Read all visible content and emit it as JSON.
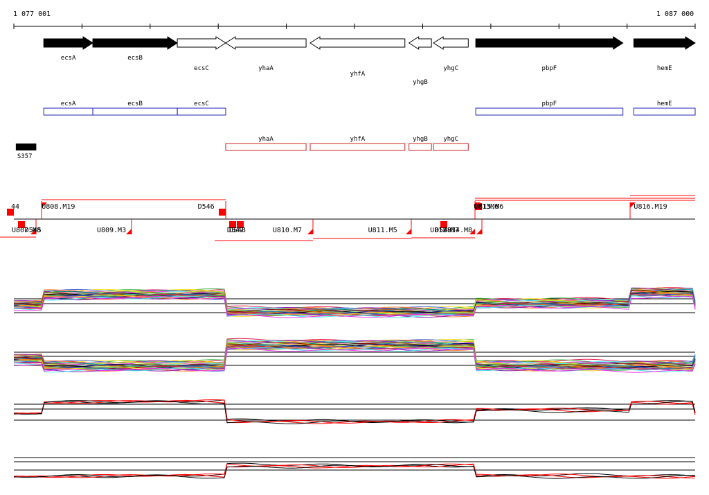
{
  "ruler": {
    "start_label": "1 077 001",
    "end_label": "1 087 000",
    "start": 1077001,
    "end": 1087000
  },
  "genes": [
    {
      "name": "ecsA",
      "start": 1077440,
      "end": 1078160,
      "strand": "+",
      "filled": true,
      "label_row": 0
    },
    {
      "name": "ecsB",
      "start": 1078160,
      "end": 1079400,
      "strand": "+",
      "filled": true,
      "label_row": 0
    },
    {
      "name": "ecsC",
      "start": 1079400,
      "end": 1080110,
      "strand": "+",
      "filled": false,
      "label_row": 1
    },
    {
      "name": "yhaA",
      "start": 1080110,
      "end": 1081290,
      "strand": "-",
      "filled": false,
      "label_row": 1
    },
    {
      "name": "yhfA",
      "start": 1081350,
      "end": 1082740,
      "strand": "-",
      "filled": false,
      "label_row": 2
    },
    {
      "name": "yhgB",
      "start": 1082800,
      "end": 1083130,
      "strand": "-",
      "filled": false,
      "label_row": 3
    },
    {
      "name": "yhgC",
      "start": 1083160,
      "end": 1083670,
      "strand": "-",
      "filled": false,
      "label_row": 1
    },
    {
      "name": "pbpF",
      "start": 1083780,
      "end": 1085940,
      "strand": "+",
      "filled": true,
      "label_row": 1
    },
    {
      "name": "hemE",
      "start": 1086100,
      "end": 1087000,
      "strand": "+",
      "filled": true,
      "label_row": 1
    }
  ],
  "forward_boxes": [
    {
      "name": "ecsA",
      "start": 1077440,
      "end": 1078160
    },
    {
      "name": "ecsB",
      "start": 1078160,
      "end": 1079400
    },
    {
      "name": "ecsC",
      "start": 1079400,
      "end": 1080110
    },
    {
      "name": "pbpF",
      "start": 1083780,
      "end": 1085940
    },
    {
      "name": "hemE",
      "start": 1086100,
      "end": 1087000
    }
  ],
  "reverse_boxes": [
    {
      "name": "yhaA",
      "start": 1080110,
      "end": 1081290
    },
    {
      "name": "yhfA",
      "start": 1081350,
      "end": 1082740
    },
    {
      "name": "yhgB",
      "start": 1082800,
      "end": 1083130
    },
    {
      "name": "yhgC",
      "start": 1083160,
      "end": 1083670
    }
  ],
  "srna": {
    "name": "S357",
    "start": 1077030,
    "end": 1077330
  },
  "segments": {
    "labels": [
      {
        "text": "U808.M19",
        "pos": 1077410,
        "side": "top"
      },
      {
        "text": "D546",
        "pos": 1079700,
        "side": "top"
      },
      {
        "text": "U813M6",
        "pos": 1083750,
        "side": "top"
      },
      {
        "text": "U815.M6",
        "pos": 1083760,
        "side": "top"
      },
      {
        "text": "U816.M19",
        "pos": 1086100,
        "side": "top"
      },
      {
        "text": "44",
        "pos": 1076960,
        "side": "top"
      },
      {
        "text": "U807.M8",
        "pos": 1076970,
        "side": "bottom"
      },
      {
        "text": "D545",
        "pos": 1077160,
        "side": "bottom"
      },
      {
        "text": "U809.M3",
        "pos": 1078220,
        "side": "bottom"
      },
      {
        "text": "D547",
        "pos": 1080130,
        "side": "bottom"
      },
      {
        "text": "D548",
        "pos": 1080160,
        "side": "bottom"
      },
      {
        "text": "U810.M7",
        "pos": 1080800,
        "side": "bottom"
      },
      {
        "text": "U811.M5",
        "pos": 1082200,
        "side": "bottom"
      },
      {
        "text": "D549",
        "pos": 1083180,
        "side": "bottom"
      },
      {
        "text": "U812.M7",
        "pos": 1083110,
        "side": "bottom"
      },
      {
        "text": "U814.M8",
        "pos": 1083300,
        "side": "bottom"
      }
    ]
  },
  "colors": {
    "forward_box": "#2222bb",
    "reverse_box": "#cc2222",
    "segment_red": "#ff0000",
    "profile_line": "#000000"
  }
}
